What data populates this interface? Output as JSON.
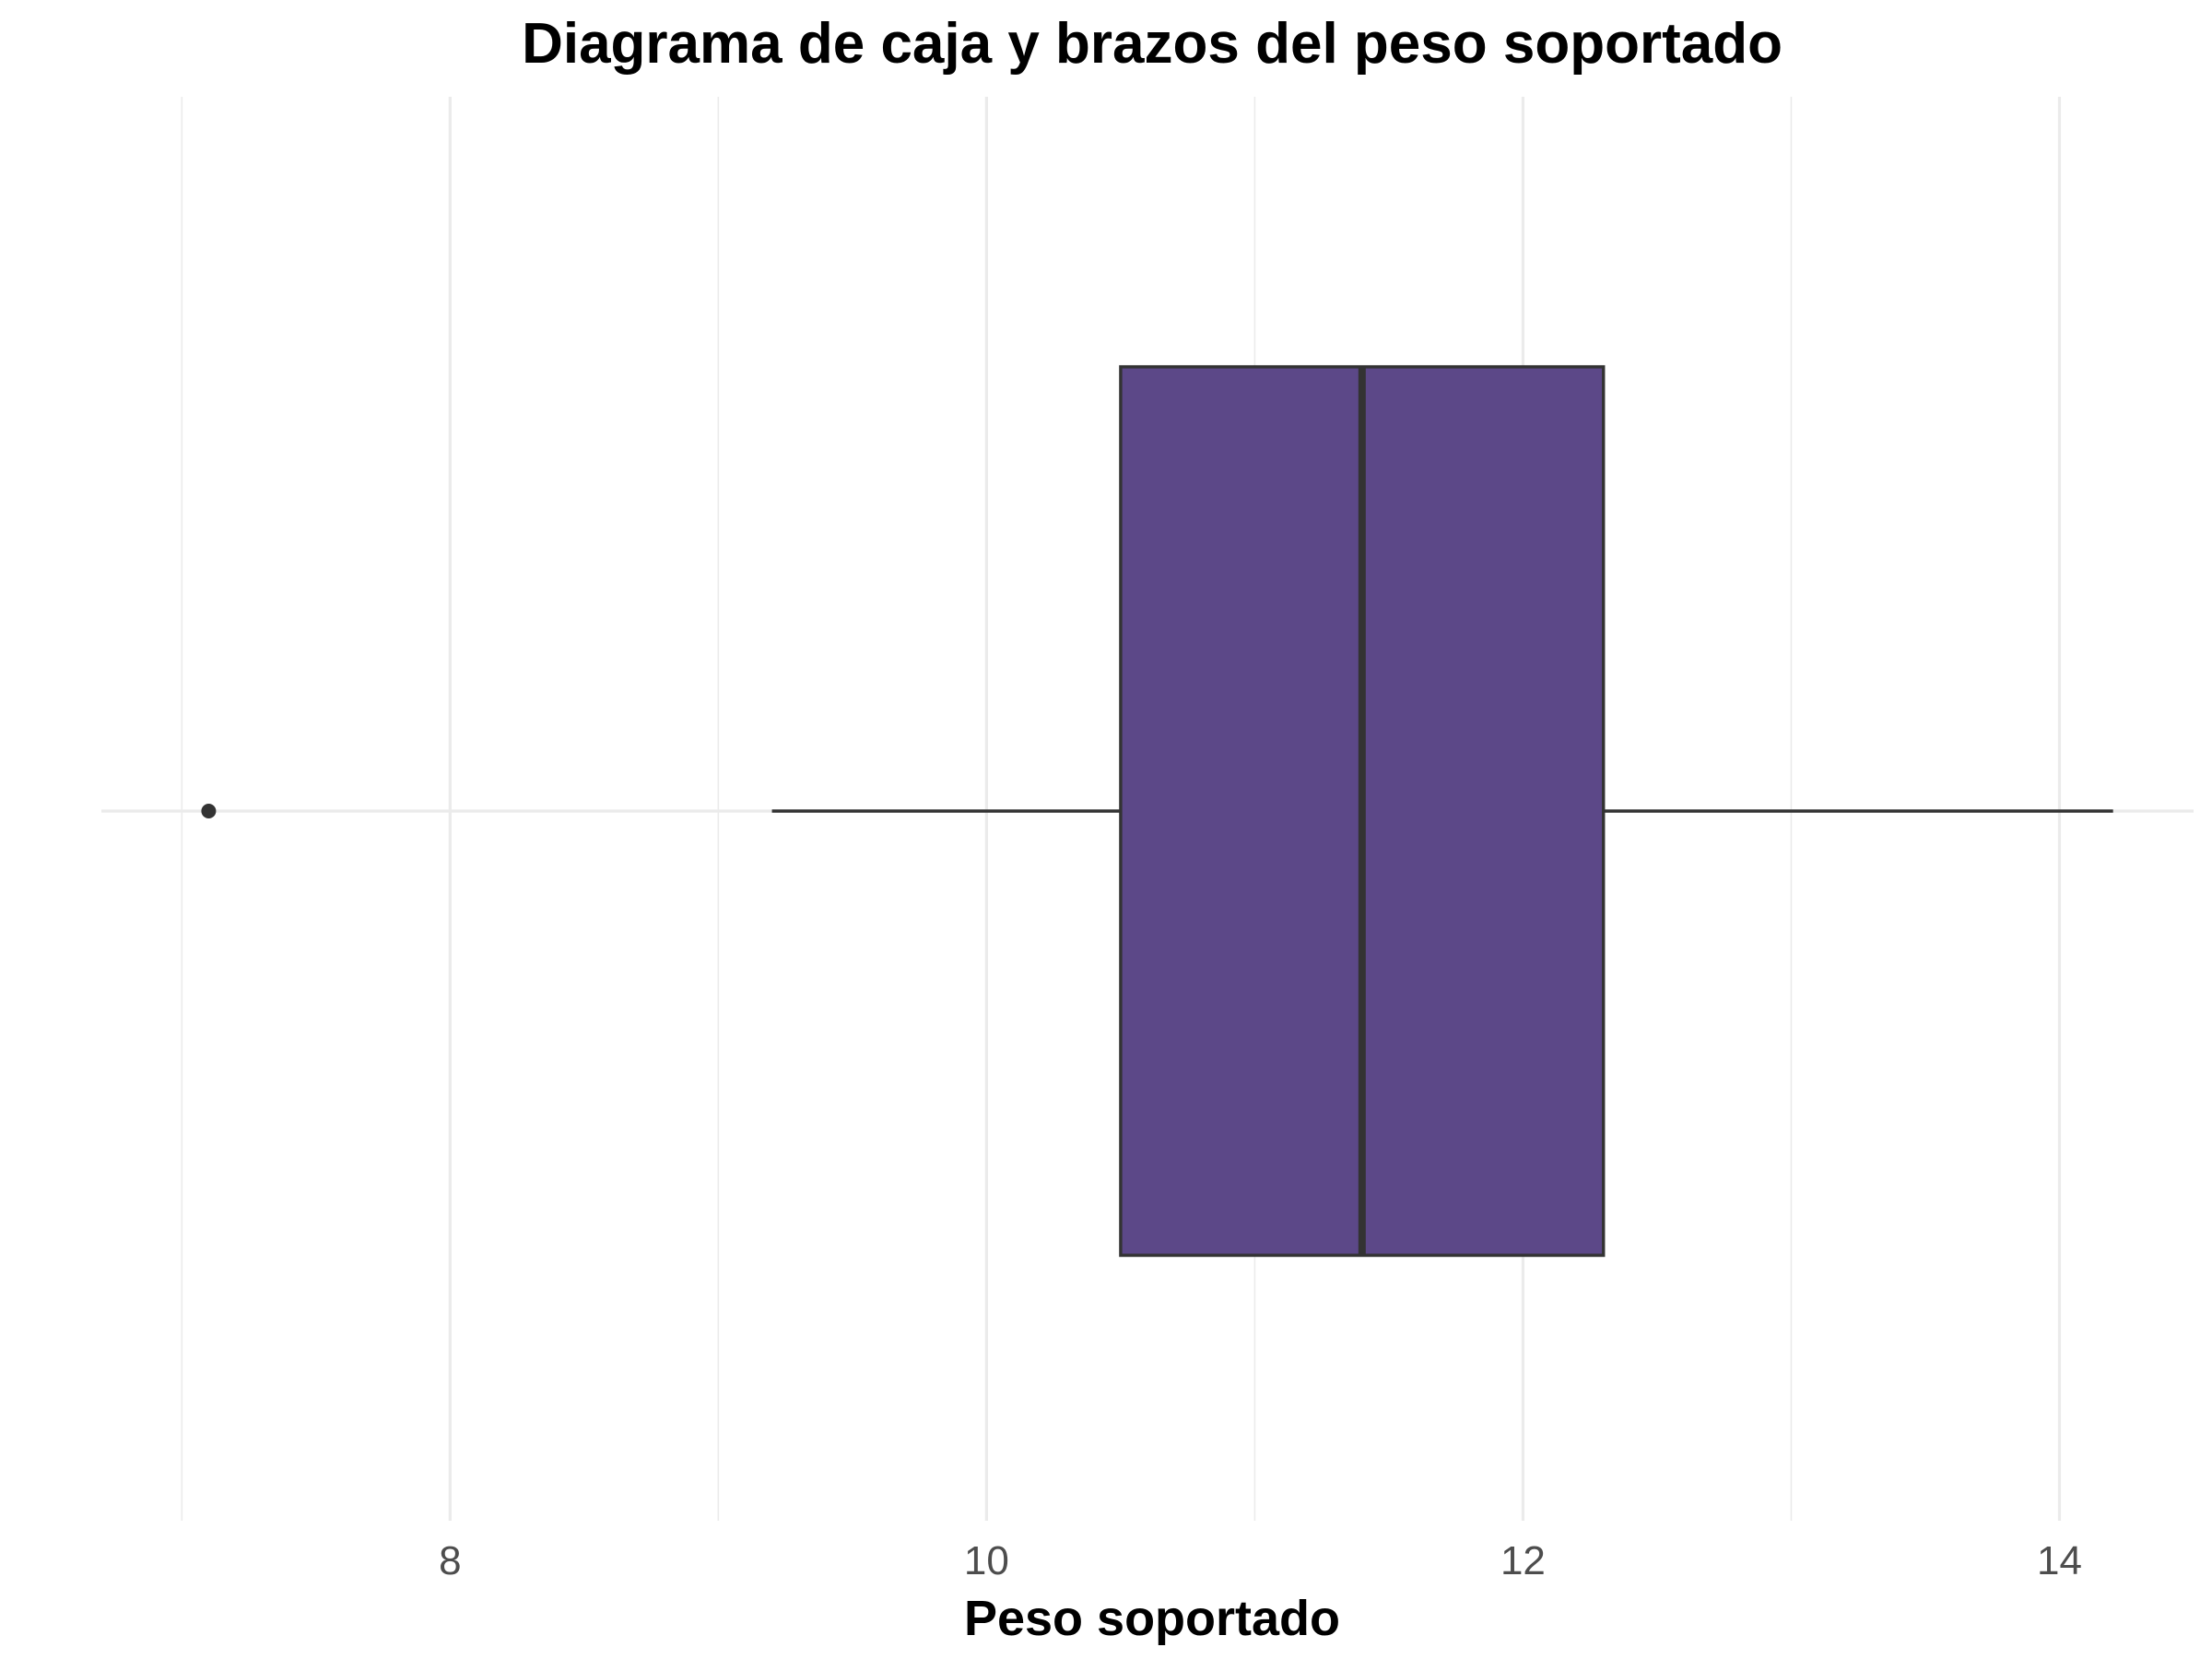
{
  "chart_data": {
    "type": "boxplot",
    "orientation": "horizontal",
    "title": "Diagrama de caja y brazos del peso soportado",
    "xlabel": "Peso soportado",
    "ylabel": "",
    "xlim": [
      6.7,
      14.5
    ],
    "x_ticks": [
      8,
      10,
      12,
      14
    ],
    "x_tick_labels": [
      "8",
      "10",
      "12",
      "14"
    ],
    "x_minor_ticks": [
      7,
      9,
      11,
      13
    ],
    "grid": true,
    "legend": "none",
    "box": {
      "whisker_low": 9.2,
      "q1": 10.5,
      "median": 11.4,
      "q3": 12.3,
      "whisker_high": 14.2,
      "outliers": [
        7.1
      ]
    },
    "colors": {
      "box_fill": "#5c4888",
      "box_stroke": "#333333",
      "outlier": "#333333",
      "whisker": "#333333"
    }
  }
}
